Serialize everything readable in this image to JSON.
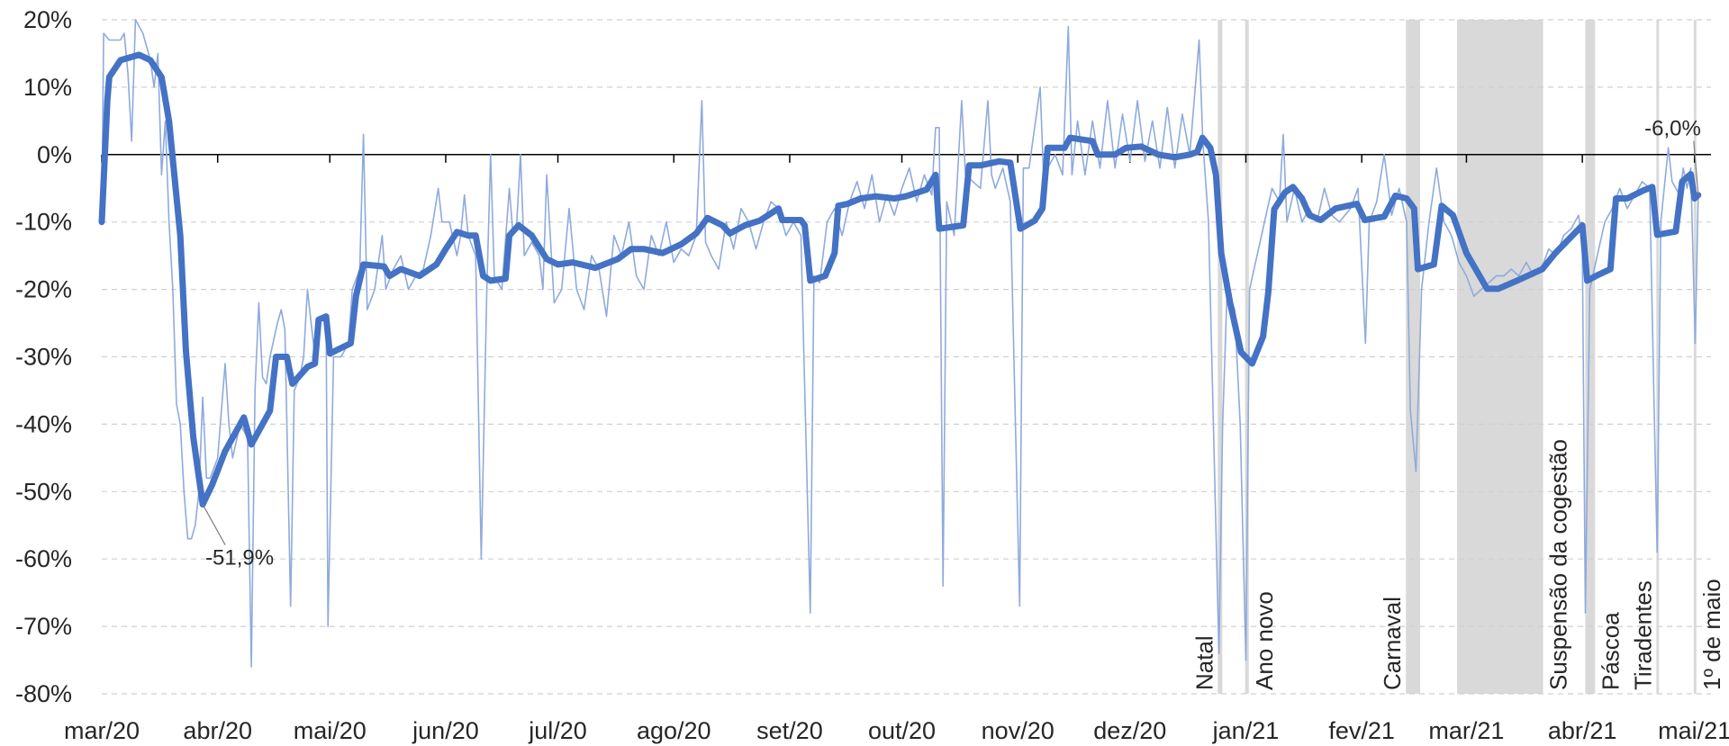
{
  "chart_data": {
    "type": "line",
    "xlim": [
      0,
      428
    ],
    "xticks": [
      {
        "value": 0,
        "label": "mar/20"
      },
      {
        "value": 31,
        "label": "abr/20"
      },
      {
        "value": 61,
        "label": "mai/20"
      },
      {
        "value": 92,
        "label": "jun/20"
      },
      {
        "value": 122,
        "label": "jul/20"
      },
      {
        "value": 153,
        "label": "ago/20"
      },
      {
        "value": 184,
        "label": "set/20"
      },
      {
        "value": 214,
        "label": "out/20"
      },
      {
        "value": 245,
        "label": "nov/20"
      },
      {
        "value": 275,
        "label": "dez/20"
      },
      {
        "value": 306,
        "label": "jan/21"
      },
      {
        "value": 337,
        "label": "fev/21"
      },
      {
        "value": 365,
        "label": "mar/21"
      },
      {
        "value": 396,
        "label": "abr/21"
      },
      {
        "value": 426,
        "label": "mai/21"
      }
    ],
    "ylim": [
      -80,
      20
    ],
    "yticks": [
      {
        "value": -80,
        "label": "-80%"
      },
      {
        "value": -70,
        "label": "-70%"
      },
      {
        "value": -60,
        "label": "-60%"
      },
      {
        "value": -50,
        "label": "-50%"
      },
      {
        "value": -40,
        "label": "-40%"
      },
      {
        "value": -30,
        "label": "-30%"
      },
      {
        "value": -20,
        "label": "-20%"
      },
      {
        "value": -10,
        "label": "-10%"
      },
      {
        "value": 0,
        "label": "0%"
      },
      {
        "value": 10,
        "label": "10%"
      },
      {
        "value": 20,
        "label": "20%"
      }
    ],
    "grid": true,
    "series": [
      {
        "color": "#8faadc",
        "x": [
          0,
          0.5,
          2,
          5,
          6,
          7,
          8,
          9,
          11,
          13,
          14,
          15,
          16,
          17,
          18,
          19,
          20,
          21,
          22,
          23,
          24,
          25,
          26,
          27,
          28,
          29,
          31,
          33,
          34,
          35,
          37,
          39,
          40,
          41,
          42,
          43,
          44,
          45,
          47,
          48,
          49,
          50.5,
          51.5,
          53,
          54,
          55,
          56,
          57,
          58,
          60,
          60.5,
          62,
          64,
          66,
          67,
          69,
          70,
          71,
          73,
          75,
          76,
          78,
          80,
          82,
          84,
          86,
          88,
          90,
          91,
          93,
          95,
          96,
          97,
          98,
          100,
          101.5,
          103,
          104,
          105,
          107,
          109,
          110,
          111,
          112,
          113,
          115,
          117,
          118,
          119,
          121,
          123,
          125,
          127,
          129,
          131,
          133,
          135,
          137,
          139,
          141,
          143,
          145,
          147,
          149,
          151,
          153,
          155,
          157,
          159,
          160.5,
          161.5,
          163,
          165,
          167,
          169,
          171,
          173,
          175,
          177,
          179,
          181,
          183,
          185,
          187,
          189.5,
          190.5,
          192,
          194,
          196,
          198,
          200,
          202,
          204,
          206,
          208,
          210,
          212,
          214,
          216,
          218,
          220,
          222,
          223,
          224,
          225,
          226,
          228,
          230,
          231,
          233,
          235,
          237,
          238,
          239,
          241,
          243,
          245.5,
          246.5,
          248,
          251,
          252,
          253,
          255,
          257,
          258.5,
          259.5,
          261,
          263,
          265,
          267,
          269,
          271,
          273,
          275,
          277,
          279,
          281,
          283,
          285,
          287,
          289,
          291,
          293.5,
          294.5,
          296,
          298.8,
          299.8,
          301,
          303,
          304.5,
          306,
          307,
          309,
          311,
          313,
          315,
          316,
          317,
          319,
          321,
          323,
          325,
          327,
          329,
          331,
          334,
          336,
          338,
          339,
          341,
          343,
          345,
          347,
          349,
          350,
          351.5,
          353,
          355,
          357,
          359,
          361,
          363,
          365,
          367,
          369,
          371,
          373,
          375,
          377,
          379,
          381,
          383,
          385,
          387,
          389,
          391,
          393,
          395,
          396,
          396.8,
          398,
          400,
          402,
          404,
          406,
          408,
          410,
          412,
          414,
          416,
          417,
          419,
          420,
          422,
          423,
          424,
          425,
          426.2,
          427
        ],
        "values": [
          -10,
          18,
          17,
          17,
          18,
          12,
          2,
          20,
          18,
          14,
          10,
          15,
          -3,
          5,
          -10,
          -20,
          -37,
          -40,
          -50,
          -57,
          -57,
          -55,
          -50,
          -36,
          -48,
          -48,
          -45,
          -31,
          -40,
          -45,
          -40,
          -42,
          -76,
          -35,
          -22,
          -33,
          -34,
          -30,
          -25,
          -23,
          -26,
          -67,
          -35,
          -33,
          -30,
          -20,
          -25,
          -30,
          -25,
          -24,
          -70,
          -30,
          -30,
          -28,
          -20,
          -17,
          3,
          -23,
          -20,
          -12,
          -20,
          -17,
          -15,
          -20,
          -18,
          -17,
          -12,
          -5,
          -10,
          -10,
          -15,
          -12,
          -6,
          -12,
          -15,
          -60,
          -20,
          0,
          -18,
          -20,
          -5,
          -12,
          -10,
          0,
          -15,
          -13,
          -15,
          -20,
          -3,
          -22,
          -20,
          -8,
          -20,
          -23,
          -15,
          -17,
          -24,
          -12,
          -15,
          -10,
          -18,
          -20,
          -12,
          -15,
          -10,
          -16,
          -14,
          -15,
          -12,
          8,
          -13,
          -15,
          -17,
          -10,
          -14,
          -8,
          -10,
          -14,
          -10,
          -7,
          -8,
          -12,
          -10,
          -12,
          -68,
          -18,
          -19,
          -10,
          -8,
          -12,
          -7,
          -4,
          -8,
          -3,
          -10,
          -6,
          -9,
          -5,
          -2,
          -7,
          -3,
          -6,
          4,
          4,
          -64,
          -7,
          -12,
          8,
          -3,
          -4,
          -5,
          8,
          -3,
          -5,
          -2,
          -7,
          -67,
          -2,
          -2,
          10,
          -5,
          -2,
          0,
          -3,
          19,
          -3,
          5,
          -3,
          5,
          -2,
          8,
          -2,
          6,
          -1,
          8,
          -1,
          5,
          -2,
          7,
          -2,
          6,
          0,
          17,
          2,
          -10,
          -74,
          -40,
          -20,
          -23,
          -40,
          -75,
          -20,
          -15,
          -10,
          -5,
          -7,
          3,
          -10,
          -5,
          -10,
          -8,
          -10,
          -5,
          -9,
          -10,
          -8,
          -5,
          -28,
          -10,
          -7,
          0,
          -9,
          -5,
          -10,
          -38,
          -47,
          -20,
          -10,
          -2,
          -10,
          -12,
          -16,
          -18,
          -21,
          -20,
          -19,
          -18,
          -18,
          -17,
          -18,
          -16,
          -18,
          -17,
          -14,
          -15,
          -12,
          -11,
          -9,
          -13,
          -68,
          -20,
          -15,
          -10,
          -8,
          -5,
          -8,
          -6,
          -4,
          -5,
          -59,
          -10,
          1,
          -4,
          -6,
          -2,
          -5,
          -2,
          -28,
          -6
        ]
      },
      {
        "color": "#4472c4",
        "x": [
          0,
          1.5,
          2,
          5,
          10,
          13,
          16,
          18,
          21,
          22.5,
          24.5,
          27,
          29.5,
          33,
          38,
          40,
          45,
          46.6,
          49.5,
          51,
          55,
          57,
          58,
          60,
          61,
          66.6,
          68,
          70,
          75.5,
          77,
          80,
          85,
          89.5,
          92,
          95,
          98,
          100,
          102,
          104,
          108,
          109,
          111.5,
          115,
          119,
          122,
          126,
          132,
          138,
          141.6,
          145,
          150,
          155,
          159,
          162,
          166,
          168,
          172,
          176,
          181,
          182,
          187,
          188,
          189.5,
          193.5,
          196,
          197,
          199.5,
          203,
          207,
          212,
          215,
          220.6,
          223,
          224,
          230.4,
          232,
          235,
          240,
          243,
          245.7,
          249.5,
          251.6,
          253,
          257.5,
          259,
          265,
          266.4,
          271,
          274,
          278,
          282.6,
          287,
          291,
          293,
          294.4,
          296.5,
          298,
          299.4,
          301.8,
          304.7,
          307.7,
          310.6,
          312,
          313.6,
          316.5,
          318.6,
          321,
          323,
          326,
          330,
          335.7,
          337.8,
          343,
          346,
          349,
          351,
          352,
          356.3,
          358.4,
          361.4,
          365,
          370.5,
          373.5,
          378.5,
          385.3,
          388.8,
          393,
          396,
          397.3,
          400,
          403.5,
          405,
          408,
          412.4,
          414.7,
          416,
          421,
          422.7,
          425,
          426,
          427
        ],
        "values": [
          -10,
          8,
          11.5,
          14,
          14.8,
          14,
          11.5,
          5,
          -12,
          -29,
          -42,
          -51.9,
          -49,
          -44,
          -39,
          -43,
          -38,
          -30,
          -30,
          -34,
          -31.5,
          -31,
          -24.5,
          -24,
          -29.5,
          -28,
          -21,
          -16.3,
          -16.6,
          -18,
          -17,
          -18,
          -16.3,
          -14,
          -11.5,
          -12,
          -12,
          -18,
          -18.7,
          -18.4,
          -12,
          -10.5,
          -12,
          -15.5,
          -16.3,
          -16,
          -16.8,
          -15.5,
          -14,
          -14,
          -14.6,
          -13.3,
          -11.7,
          -9.4,
          -10.5,
          -11.7,
          -10.5,
          -9.8,
          -8,
          -9.7,
          -9.7,
          -10.5,
          -18.7,
          -18,
          -14.6,
          -7.6,
          -7.3,
          -6.5,
          -6.2,
          -6.5,
          -6.2,
          -5.2,
          -3,
          -11,
          -10.5,
          -1.6,
          -1.6,
          -1,
          -1.2,
          -11,
          -9.8,
          -8,
          1,
          1,
          2.5,
          2,
          0,
          0,
          1,
          1.2,
          0,
          -0.4,
          0,
          0.4,
          2.5,
          1,
          -3,
          -14.6,
          -22,
          -29.3,
          -31,
          -27,
          -20.4,
          -8.1,
          -5.6,
          -4.8,
          -6.5,
          -9,
          -9.7,
          -8,
          -7.3,
          -9.7,
          -9.2,
          -6.1,
          -6.5,
          -8,
          -17,
          -16.3,
          -7.6,
          -9,
          -14.6,
          -19.9,
          -19.9,
          -18.7,
          -17,
          -14.6,
          -12.2,
          -10.5,
          -18.7,
          -17.9,
          -17,
          -6.5,
          -6.5,
          -5.3,
          -4.8,
          -11.9,
          -11.4,
          -4,
          -2.9,
          -6.5,
          -6
        ]
      }
    ],
    "shaded_periods": [
      {
        "label": "Natal",
        "start": 298.5,
        "end": 299.7
      },
      {
        "label": "Ano novo",
        "start": 305.8,
        "end": 306.8
      },
      {
        "label": "Carnaval",
        "start": 348.8,
        "end": 352.6
      },
      {
        "label": "Suspensão da cogestão",
        "start": 362.5,
        "end": 385.5
      },
      {
        "label": "Páscoa",
        "start": 396.8,
        "end": 399.4
      },
      {
        "label": "Tiradentes",
        "start": 415.8,
        "end": 416.5
      },
      {
        "label": "1º de maio",
        "start": 425.8,
        "end": 426.5
      }
    ],
    "point_labels": [
      {
        "x": 27,
        "y": -51.9,
        "label": "-51,9%"
      },
      {
        "x": 427,
        "y": -6,
        "label": "-6,0%"
      }
    ]
  }
}
